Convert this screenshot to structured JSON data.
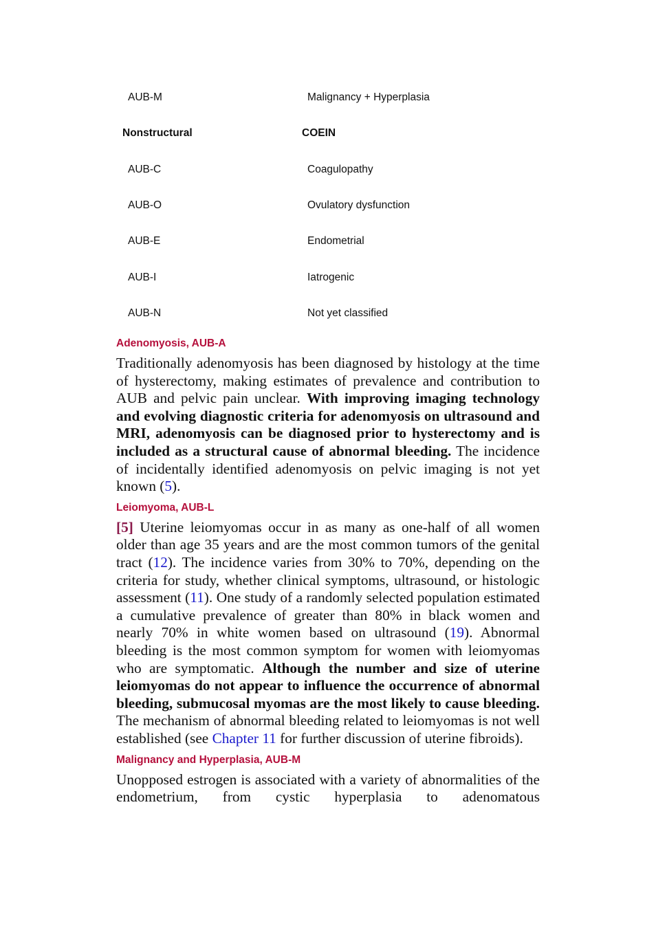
{
  "table": {
    "top_rows": [
      [
        "AUB-M",
        "Malignancy + Hyperplasia"
      ]
    ],
    "group_header": [
      "Nonstructural",
      "COEIN"
    ],
    "rows": [
      [
        "AUB-C",
        "Coagulopathy"
      ],
      [
        "AUB-O",
        "Ovulatory dysfunction"
      ],
      [
        "AUB-E",
        "Endometrial"
      ],
      [
        "AUB-I",
        "Iatrogenic"
      ],
      [
        "AUB-N",
        "Not yet classified"
      ]
    ]
  },
  "sections": [
    {
      "heading": "Adenomyosis, AUB-A",
      "paragraph": [
        "Traditionally adenomyosis has been diagnosed by histology at the time of hysterectomy, making estimates of prevalence and contribution to AUB and pelvic pain unclear. ",
        "With improving imaging technology and evolving diagnostic criteria for adenomyosis on ultrasound and MRI, adenomyosis can be diagnosed prior to hysterectomy and is included as a structural cause of abnormal bleeding.",
        " The incidence of incidentally identified adenomyosis on pelvic imaging is not yet known (",
        "5",
        ")."
      ]
    },
    {
      "heading": "Leiomyoma, AUB-L",
      "paragraph": [
        "[5]",
        " Uterine leiomyomas occur in as many as one-half of all women older than age 35 years and are the most common tumors of the genital tract (",
        "12",
        "). The incidence varies from 30% to 70%, depending on the criteria for study, whether clinical symptoms, ultrasound, or histologic assessment (",
        "11",
        "). One study of a randomly selected population estimated a cumulative prevalence of greater than 80% in black women and nearly 70% in white women based on ultrasound (",
        "19",
        "). Abnormal bleeding is the most common symptom for women with leiomyomas who are symptomatic. ",
        "Although the number and size of uterine leiomyomas do not appear to influence the occurrence of abnormal bleeding, submucosal myomas are the most likely to cause bleeding.",
        " The mechanism of abnormal bleeding related to leiomyomas is not well established (see ",
        "Chapter 11",
        " for further discussion of uterine fibroids)."
      ]
    },
    {
      "heading": "Malignancy and Hyperplasia, AUB-M",
      "paragraph": [
        "Unopposed estrogen is associated with a variety of abnormalities of the endometrium, from cystic hyperplasia to adenomatous"
      ]
    }
  ]
}
